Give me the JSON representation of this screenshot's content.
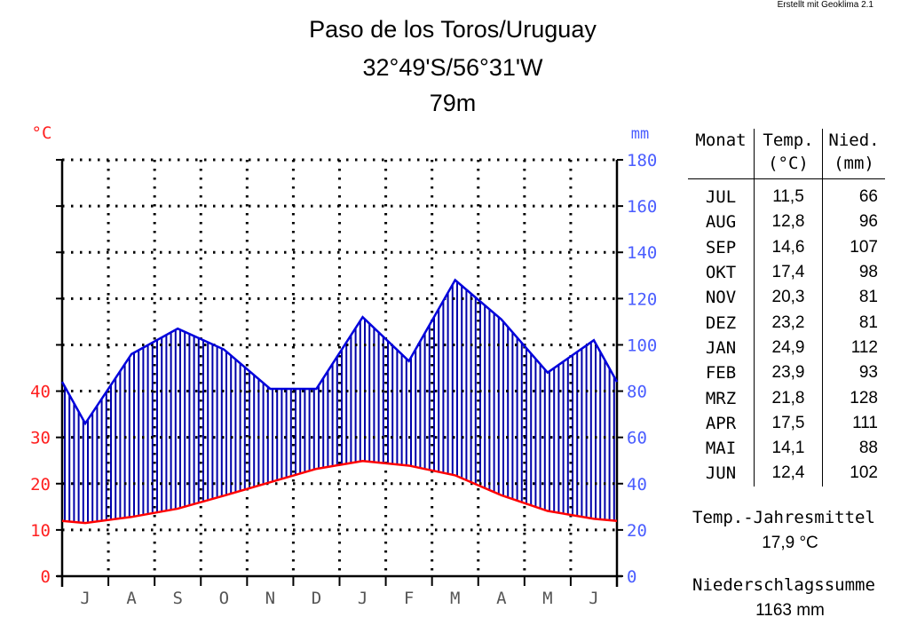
{
  "credit": "Erstellt mit Geoklima 2.1",
  "title": {
    "line1": "Paso de los Toros/Uruguay",
    "line2": "32°49'S/56°31'W",
    "line3": "79m"
  },
  "colors": {
    "temperature": "#ff0000",
    "temperature_axis": "#ff2020",
    "precipitation": "#0000dd",
    "precipitation_axis": "#4a5dff",
    "fill": "#0000aa"
  },
  "chart_data": {
    "type": "line",
    "title": "Paso de los Toros/Uruguay",
    "categories": [
      "J",
      "A",
      "S",
      "O",
      "N",
      "D",
      "J",
      "F",
      "M",
      "A",
      "M",
      "J"
    ],
    "series": [
      {
        "values": [
          11.5,
          12.8,
          14.6,
          17.4,
          20.3,
          23.2,
          24.9,
          23.9,
          21.8,
          17.5,
          14.1,
          12.4
        ]
      },
      {
        "values": [
          66,
          96,
          107,
          98,
          81,
          81,
          112,
          93,
          128,
          111,
          88,
          102
        ]
      }
    ],
    "left_axis": {
      "unit": "°C",
      "ticks": [
        "0",
        "10",
        "20",
        "30",
        "40"
      ],
      "range": [
        0,
        90
      ]
    },
    "right_axis": {
      "unit": "mm",
      "ticks": [
        "0",
        "20",
        "40",
        "60",
        "80",
        "100",
        "120",
        "140",
        "160",
        "180"
      ],
      "range": [
        0,
        180
      ]
    },
    "grid": true
  },
  "table": {
    "headers": {
      "month": "Monat",
      "temp_1": "Temp.",
      "temp_2": "(°C)",
      "prec_1": "Nied.",
      "prec_2": "(mm)"
    },
    "rows": [
      {
        "month": "JUL",
        "temp": "11,5",
        "prec": "66"
      },
      {
        "month": "AUG",
        "temp": "12,8",
        "prec": "96"
      },
      {
        "month": "SEP",
        "temp": "14,6",
        "prec": "107"
      },
      {
        "month": "OKT",
        "temp": "17,4",
        "prec": "98"
      },
      {
        "month": "NOV",
        "temp": "20,3",
        "prec": "81"
      },
      {
        "month": "DEZ",
        "temp": "23,2",
        "prec": "81"
      },
      {
        "month": "JAN",
        "temp": "24,9",
        "prec": "112"
      },
      {
        "month": "FEB",
        "temp": "23,9",
        "prec": "93"
      },
      {
        "month": "MRZ",
        "temp": "21,8",
        "prec": "128"
      },
      {
        "month": "APR",
        "temp": "17,5",
        "prec": "111"
      },
      {
        "month": "MAI",
        "temp": "14,1",
        "prec": "88"
      },
      {
        "month": "JUN",
        "temp": "12,4",
        "prec": "102"
      }
    ]
  },
  "summary": {
    "temp_label": "Temp.-Jahresmittel",
    "temp_value": "17,9 °C",
    "prec_label": "Niederschlagssumme",
    "prec_value": "1163 mm"
  }
}
